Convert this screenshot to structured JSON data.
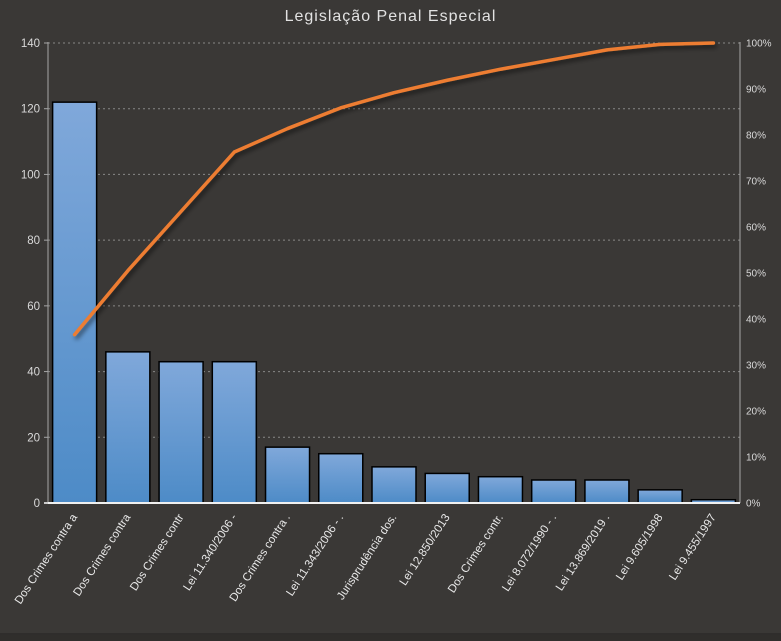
{
  "chart_data": {
    "type": "pareto",
    "title": "Legislação Penal Especial",
    "categories": [
      "Dos Crimes contra a",
      "Dos Crimes contra",
      "Dos Crimes contr",
      "Lei 11.340/2006 -",
      "Dos Crimes contra .",
      "Lei 11.343/2006 - .",
      "Jurisprudência dos.",
      "Lei 12.850/2013",
      "Dos Crimes contr.",
      "Lei 8.072/1990 - .",
      "Lei 13.869/2019 .",
      "Lei 9.605/1998",
      "Lei 9.455/1997"
    ],
    "series": [
      {
        "type": "bar",
        "axis": "left",
        "values": [
          122,
          46,
          43,
          43,
          17,
          15,
          11,
          9,
          8,
          7,
          7,
          4,
          1
        ]
      },
      {
        "type": "line",
        "axis": "right",
        "values_pct": [
          36.6,
          50.5,
          63.4,
          76.3,
          81.4,
          85.9,
          89.2,
          91.9,
          94.3,
          96.4,
          98.5,
          99.7,
          100
        ]
      }
    ],
    "y_left": {
      "min": 0,
      "max": 140,
      "step": 20,
      "ticks": [
        "0",
        "20",
        "40",
        "60",
        "80",
        "100",
        "120",
        "140"
      ]
    },
    "y_right": {
      "min": 0,
      "max": 100,
      "step": 10,
      "ticks": [
        "0%",
        "10%",
        "20%",
        "30%",
        "40%",
        "50%",
        "60%",
        "70%",
        "80%",
        "90%",
        "100%"
      ]
    },
    "grid": {
      "horizontal": "dashed",
      "vertical": "none"
    },
    "legend": "none"
  },
  "colors": {
    "background": "#3a3836",
    "bar_fill_top": "#80a8da",
    "bar_fill_bottom": "#4d8bc7",
    "bar_border": "#000000",
    "line": "#ED7D31",
    "grid": "#b3b3b3",
    "axis_side": "#a6a6a6",
    "axis_bottom": "#f0f0f0",
    "tick_text": "#d9d9d9",
    "category_text": "#e8e8e8",
    "title_text": "#e2e2e2"
  }
}
